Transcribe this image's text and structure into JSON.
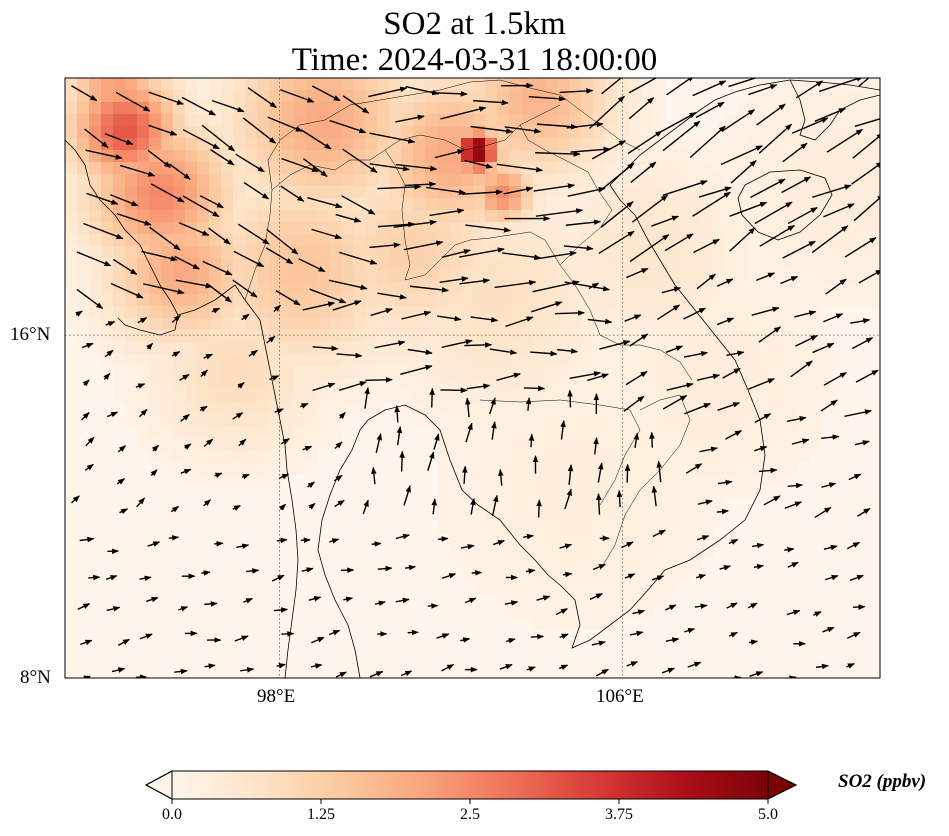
{
  "map": {
    "title_line1": "SO2 at 1.5km",
    "title_line2": "Time: 2024-03-31 18:00:00",
    "extent": {
      "lon_min": 93.0,
      "lon_max": 112.0,
      "lat_min": 8.0,
      "lat_max": 22.0
    },
    "gridlines": {
      "lon": [
        98,
        106
      ],
      "lat": [
        8,
        16
      ]
    },
    "lat_ticks": [
      {
        "value": 16,
        "label": "16°N"
      },
      {
        "value": 8,
        "label": "8°N"
      }
    ],
    "lon_ticks": [
      {
        "value": 98,
        "label": "98°E"
      },
      {
        "value": 106,
        "label": "106°E"
      }
    ],
    "field_hotspots": [
      {
        "lon": 94.4,
        "lat": 20.8,
        "so2": 3.2,
        "spread": 0.9
      },
      {
        "lon": 95.2,
        "lat": 19.3,
        "so2": 2.5,
        "spread": 1.2
      },
      {
        "lon": 95.7,
        "lat": 17.5,
        "so2": 2.0,
        "spread": 1.2
      },
      {
        "lon": 94.2,
        "lat": 21.7,
        "so2": 2.2,
        "spread": 0.8
      },
      {
        "lon": 99.0,
        "lat": 21.0,
        "so2": 2.0,
        "spread": 1.5
      },
      {
        "lon": 102.0,
        "lat": 20.2,
        "so2": 2.0,
        "spread": 1.3
      },
      {
        "lon": 102.6,
        "lat": 20.3,
        "so2": 5.0,
        "spread": 0.35
      },
      {
        "lon": 103.2,
        "lat": 19.3,
        "so2": 2.5,
        "spread": 0.5
      },
      {
        "lon": 104.0,
        "lat": 21.5,
        "so2": 1.8,
        "spread": 1.3
      },
      {
        "lon": 98.5,
        "lat": 17.5,
        "so2": 1.5,
        "spread": 1.6
      },
      {
        "lon": 101.0,
        "lat": 18.0,
        "so2": 1.2,
        "spread": 1.6
      },
      {
        "lon": 103.0,
        "lat": 17.0,
        "so2": 0.8,
        "spread": 1.8
      },
      {
        "lon": 106.5,
        "lat": 18.0,
        "so2": 0.6,
        "spread": 1.6
      },
      {
        "lon": 108.0,
        "lat": 15.0,
        "so2": 0.35,
        "spread": 2.0
      },
      {
        "lon": 111.0,
        "lat": 19.5,
        "so2": 0.35,
        "spread": 2.0
      },
      {
        "lon": 105.0,
        "lat": 12.5,
        "so2": 0.3,
        "spread": 2.5
      },
      {
        "lon": 97.0,
        "lat": 15.2,
        "so2": 0.9,
        "spread": 1.4
      }
    ],
    "wind_regions": [
      {
        "lon_range": [
          93.0,
          100.0
        ],
        "lat_range": [
          16.5,
          22.0
        ],
        "u": 1.0,
        "v": -0.45,
        "speed": 0.9
      },
      {
        "lon_range": [
          100.0,
          105.0
        ],
        "lat_range": [
          17.0,
          22.0
        ],
        "u": 1.0,
        "v": 0.0,
        "speed": 1.0
      },
      {
        "lon_range": [
          105.0,
          112.0
        ],
        "lat_range": [
          17.5,
          22.0
        ],
        "u": 1.0,
        "v": 0.55,
        "speed": 1.0
      },
      {
        "lon_range": [
          98.0,
          106.0
        ],
        "lat_range": [
          14.5,
          17.0
        ],
        "u": 1.0,
        "v": 0.1,
        "speed": 0.7
      },
      {
        "lon_range": [
          106.0,
          112.0
        ],
        "lat_range": [
          14.0,
          17.5
        ],
        "u": 1.0,
        "v": 0.45,
        "speed": 0.6
      },
      {
        "lon_range": [
          100.0,
          107.0
        ],
        "lat_range": [
          11.5,
          14.5
        ],
        "u": 0.1,
        "v": 1.0,
        "speed": 0.45
      },
      {
        "lon_range": [
          93.0,
          112.0
        ],
        "lat_range": [
          8.0,
          11.5
        ],
        "u": 0.8,
        "v": 0.2,
        "speed": 0.3
      },
      {
        "lon_range": [
          93.0,
          100.0
        ],
        "lat_range": [
          8.0,
          16.5
        ],
        "u": 0.6,
        "v": 0.4,
        "speed": 0.25
      },
      {
        "lon_range": [
          107.0,
          112.0
        ],
        "lat_range": [
          8.0,
          14.0
        ],
        "u": 0.9,
        "v": 0.3,
        "speed": 0.4
      }
    ]
  },
  "colorbar": {
    "title": "SO2 (ppbv)",
    "min": 0.0,
    "max": 5.0,
    "extend": "both",
    "ticks": [
      {
        "value": 0.0,
        "label": "0.0"
      },
      {
        "value": 1.25,
        "label": "1.25"
      },
      {
        "value": 2.5,
        "label": "2.5"
      },
      {
        "value": 3.75,
        "label": "3.75"
      },
      {
        "value": 5.0,
        "label": "5.0"
      }
    ],
    "colors": [
      "#fff5eb",
      "#fee6ce",
      "#fdd0a2",
      "#fdae6b",
      "#f16913",
      "#d94801",
      "#a63603",
      "#7f2704"
    ],
    "cmap_stops": [
      "#fff5eb",
      "#fde4c8",
      "#fcc9a0",
      "#f9a27a",
      "#ee7058",
      "#d83a35",
      "#ad0f19",
      "#7a0404"
    ]
  }
}
